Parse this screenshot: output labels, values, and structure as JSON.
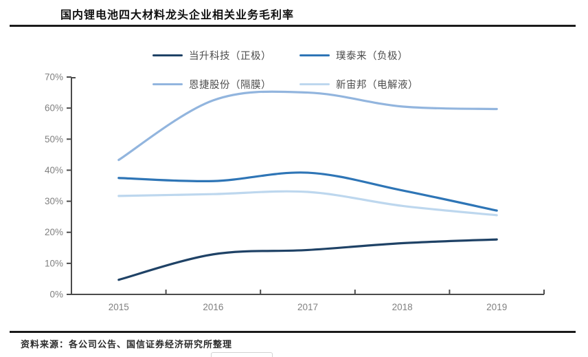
{
  "header": {
    "title": "国内锂电池四大材料龙头企业相关业务毛利率"
  },
  "footer": {
    "source": "资料来源：各公司公告、国信证券经济研究所整理"
  },
  "chart_data": {
    "type": "line",
    "x": [
      2015,
      2016,
      2017,
      2018,
      2019
    ],
    "x_labels": [
      "2015",
      "2016",
      "2017",
      "2018",
      "2019"
    ],
    "series": [
      {
        "name": "当升科技（正极）",
        "color": "#1f4266",
        "values": [
          4.7,
          12.9,
          14.3,
          16.5,
          17.7
        ]
      },
      {
        "name": "璞泰来（负极）",
        "color": "#2e75b6",
        "values": [
          37.5,
          36.5,
          39.2,
          33.5,
          27.0
        ]
      },
      {
        "name": "恩捷股份（隔膜）",
        "color": "#92b5de",
        "values": [
          43.3,
          62.5,
          65.0,
          60.5,
          59.7
        ]
      },
      {
        "name": "新宙邦（电解液）",
        "color": "#bdd7ee",
        "values": [
          31.7,
          32.3,
          33.0,
          28.5,
          25.5
        ]
      }
    ],
    "ylim": [
      0,
      70
    ],
    "ytick_step": 10,
    "ytick_labels": [
      "0%",
      "10%",
      "20%",
      "30%",
      "40%",
      "50%",
      "60%",
      "70%"
    ],
    "grid": false,
    "legend_position": "top",
    "axis_color": "#4a4a4a",
    "tick_label_color": "#808080",
    "title": "国内锂电池四大材料龙头企业相关业务毛利率",
    "xlabel": "",
    "ylabel": ""
  }
}
